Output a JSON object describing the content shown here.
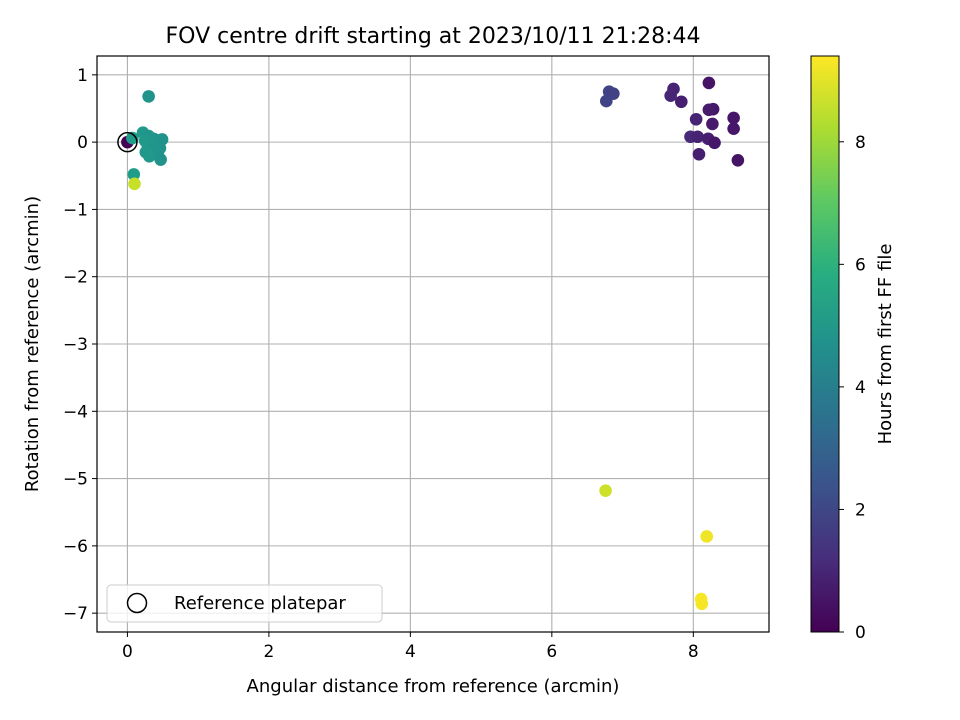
{
  "chart_data": {
    "type": "scatter",
    "title": "FOV centre drift starting at 2023/10/11 21:28:44",
    "xlabel": "Angular distance from reference (arcmin)",
    "ylabel": "Rotation from reference (arcmin)",
    "xlim": [
      -0.43,
      9.07
    ],
    "ylim": [
      -7.28,
      1.28
    ],
    "xticks": [
      0,
      2,
      4,
      6,
      8
    ],
    "yticks": [
      1,
      0,
      -1,
      -2,
      -3,
      -4,
      -5,
      -6,
      -7
    ],
    "xtick_labels": [
      "0",
      "2",
      "4",
      "6",
      "8"
    ],
    "ytick_labels": [
      "1",
      "0",
      "−1",
      "−2",
      "−3",
      "−4",
      "−5",
      "−6",
      "−7"
    ],
    "grid": true,
    "legend": {
      "placement": "lower-left",
      "entries": [
        "Reference platepar"
      ]
    },
    "colormap": "viridis",
    "colorbar": {
      "label": "Hours from first FF file",
      "range": [
        0,
        9.4
      ],
      "ticks": [
        0,
        2,
        4,
        6,
        8
      ],
      "tick_labels": [
        "0",
        "2",
        "4",
        "6",
        "8"
      ]
    },
    "reference_point": {
      "x": 0,
      "y": 0
    },
    "points": [
      {
        "x": 0.0,
        "y": 0.0,
        "hours": 0.0
      },
      {
        "x": 8.22,
        "y": 0.88,
        "hours": 0.5
      },
      {
        "x": 7.72,
        "y": 0.79,
        "hours": 0.9
      },
      {
        "x": 7.68,
        "y": 0.69,
        "hours": 1.0
      },
      {
        "x": 7.83,
        "y": 0.6,
        "hours": 0.8
      },
      {
        "x": 8.28,
        "y": 0.49,
        "hours": 0.6
      },
      {
        "x": 8.22,
        "y": 0.48,
        "hours": 0.7
      },
      {
        "x": 8.57,
        "y": 0.36,
        "hours": 0.6
      },
      {
        "x": 8.04,
        "y": 0.34,
        "hours": 0.9
      },
      {
        "x": 8.27,
        "y": 0.27,
        "hours": 0.7
      },
      {
        "x": 8.57,
        "y": 0.2,
        "hours": 0.6
      },
      {
        "x": 7.96,
        "y": 0.08,
        "hours": 1.1
      },
      {
        "x": 8.06,
        "y": 0.08,
        "hours": 0.9
      },
      {
        "x": 8.21,
        "y": 0.05,
        "hours": 0.8
      },
      {
        "x": 8.3,
        "y": -0.01,
        "hours": 0.6
      },
      {
        "x": 8.08,
        "y": -0.18,
        "hours": 0.8
      },
      {
        "x": 8.63,
        "y": -0.27,
        "hours": 0.5
      },
      {
        "x": 6.81,
        "y": 0.75,
        "hours": 1.9
      },
      {
        "x": 6.87,
        "y": 0.72,
        "hours": 1.8
      },
      {
        "x": 6.77,
        "y": 0.61,
        "hours": 1.9
      },
      {
        "x": 0.3,
        "y": 0.68,
        "hours": 4.8
      },
      {
        "x": 0.22,
        "y": 0.14,
        "hours": 5.0
      },
      {
        "x": 0.3,
        "y": 0.09,
        "hours": 4.9
      },
      {
        "x": 0.07,
        "y": 0.06,
        "hours": 5.1
      },
      {
        "x": 0.37,
        "y": 0.05,
        "hours": 4.9
      },
      {
        "x": 0.49,
        "y": 0.04,
        "hours": 4.8
      },
      {
        "x": 0.25,
        "y": 0.02,
        "hours": 5.0
      },
      {
        "x": 0.41,
        "y": -0.03,
        "hours": 4.9
      },
      {
        "x": 0.29,
        "y": -0.06,
        "hours": 5.0
      },
      {
        "x": 0.46,
        "y": -0.09,
        "hours": 4.8
      },
      {
        "x": 0.35,
        "y": -0.12,
        "hours": 4.9
      },
      {
        "x": 0.26,
        "y": -0.15,
        "hours": 5.0
      },
      {
        "x": 0.43,
        "y": -0.18,
        "hours": 4.9
      },
      {
        "x": 0.31,
        "y": -0.21,
        "hours": 5.0
      },
      {
        "x": 0.47,
        "y": -0.26,
        "hours": 4.8
      },
      {
        "x": 0.09,
        "y": -0.48,
        "hours": 5.2
      },
      {
        "x": 0.1,
        "y": -0.62,
        "hours": 8.6
      },
      {
        "x": 6.76,
        "y": -5.18,
        "hours": 8.7
      },
      {
        "x": 8.19,
        "y": -5.86,
        "hours": 9.2
      },
      {
        "x": 8.11,
        "y": -6.79,
        "hours": 9.3
      },
      {
        "x": 8.12,
        "y": -6.86,
        "hours": 9.3
      }
    ]
  }
}
